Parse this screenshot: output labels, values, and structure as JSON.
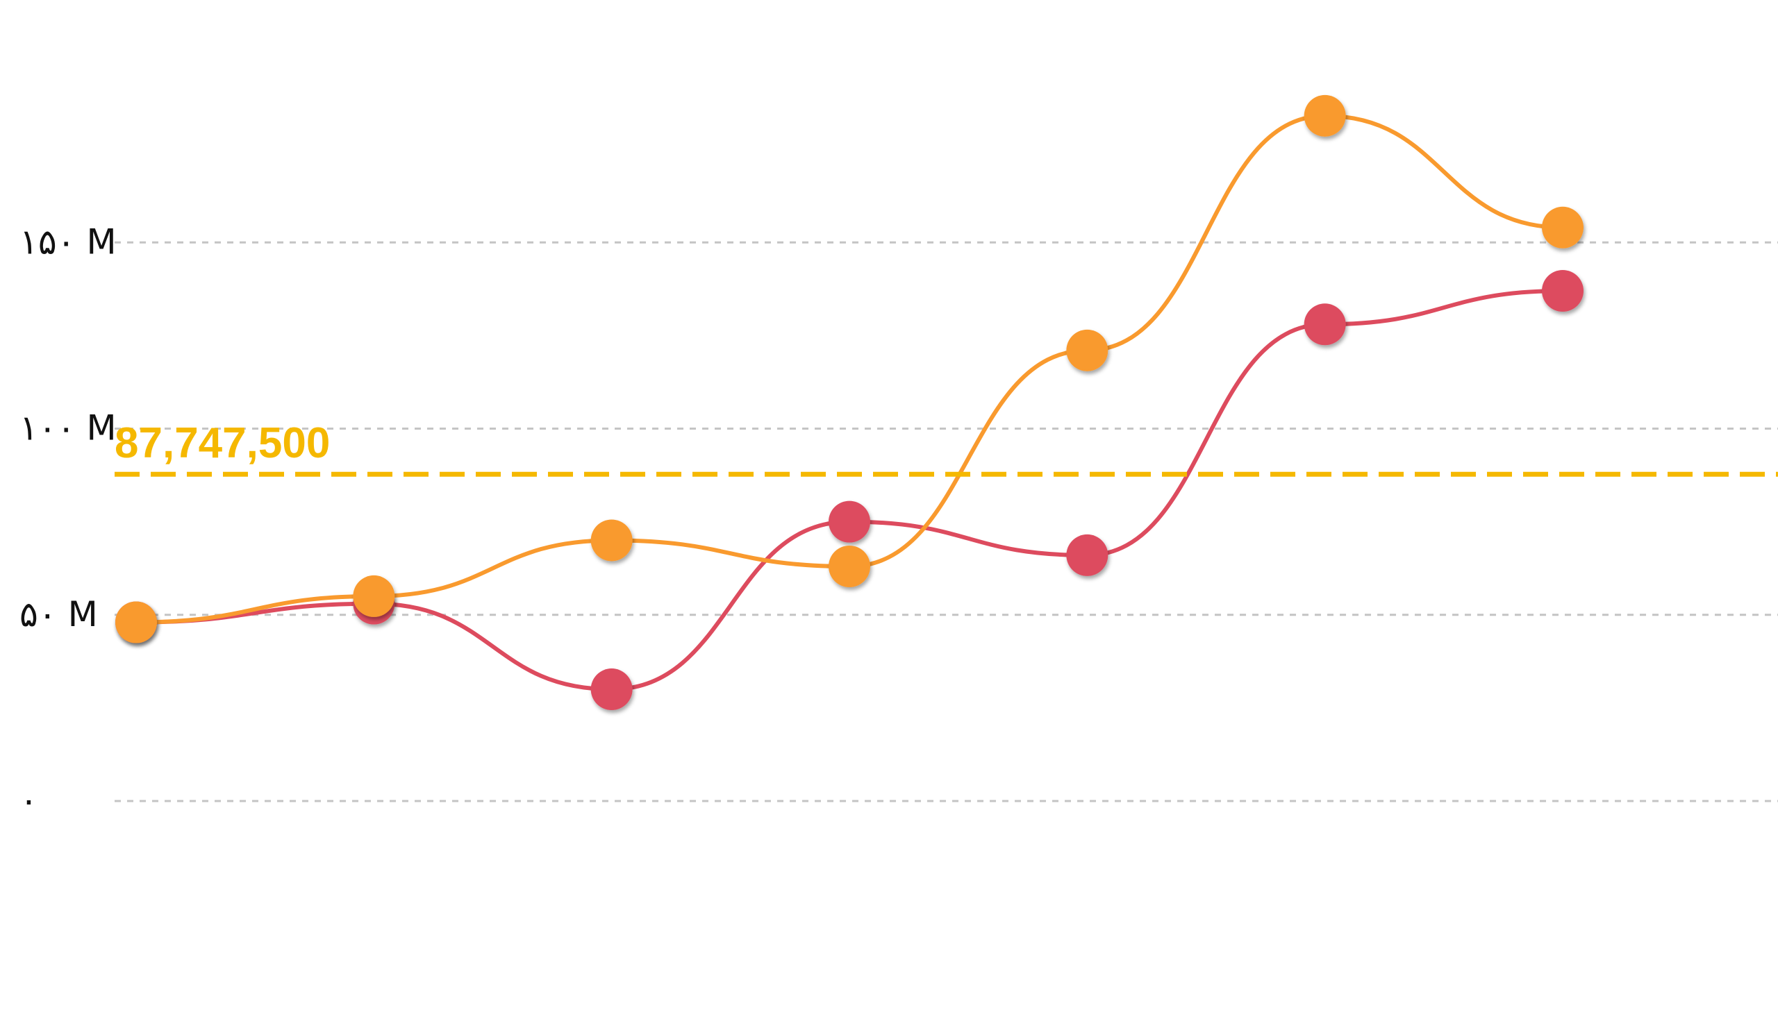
{
  "colors": {
    "series_a": "#dd4b5e",
    "series_b": "#f99a2e",
    "average_line": "#f5b800",
    "grid": "#c4c4c4",
    "text": "#111111"
  },
  "chart_data": {
    "type": "line",
    "curve": "smooth",
    "grid": "horizontal dashed",
    "x": [
      1,
      2,
      3,
      4,
      5,
      6,
      7
    ],
    "ylim": [
      0,
      200
    ],
    "yticks": [
      0,
      50,
      100,
      150
    ],
    "ytick_labels": [
      "۰",
      "۵۰ M",
      "۱۰۰ M",
      "۱۵۰ M"
    ],
    "series": [
      {
        "color": "#dd4b5e",
        "values": [
          48,
          53,
          30,
          75,
          66,
          128,
          137
        ]
      },
      {
        "color": "#f99a2e",
        "values": [
          48,
          55,
          70,
          63,
          121,
          184,
          154
        ]
      }
    ],
    "reference_line": {
      "value": 87.7475,
      "label": "87,747,500",
      "style": "dashed"
    }
  }
}
